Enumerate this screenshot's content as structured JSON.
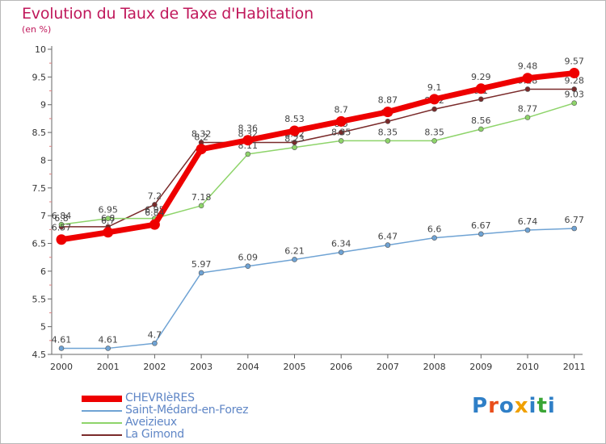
{
  "title": "Evolution du Taux de Taxe d'Habitation",
  "subtitle": "(en %)",
  "brand": {
    "text": "Proxiti",
    "letter_colors": [
      "#2f7fc7",
      "#e94e1b",
      "#2f7fc7",
      "#f0a000",
      "#2f7fc7",
      "#3aa535",
      "#2f7fc7"
    ]
  },
  "chart_data": {
    "type": "line",
    "x": [
      "2000",
      "2001",
      "2002",
      "2003",
      "2004",
      "2005",
      "2006",
      "2007",
      "2008",
      "2009",
      "2010",
      "2011"
    ],
    "ylim": [
      4.5,
      10
    ],
    "yticks": [
      "4.5",
      "5",
      "5.5",
      "6",
      "6.5",
      "7",
      "7.5",
      "8",
      "8.5",
      "9",
      "9.5",
      "10"
    ],
    "grid": false,
    "legend_position": "bottom-left",
    "series": [
      {
        "name": "La Gimond",
        "color": "#7a2a2a",
        "values": [
          6.8,
          6.8,
          7.2,
          8.32,
          8.32,
          8.32,
          8.5,
          8.7,
          8.92,
          9.1,
          9.28,
          9.28
        ],
        "labels": [
          "6.8",
          "6.8",
          "7.2",
          "8.32",
          "8.32",
          "8.32",
          "8.5",
          "8.7",
          "8.92",
          "9.1",
          "9.28",
          "9.28"
        ]
      },
      {
        "name": "Aveizieux",
        "color": "#8ed46a",
        "values": [
          6.84,
          6.95,
          6.95,
          7.18,
          8.11,
          8.23,
          8.35,
          8.35,
          8.35,
          8.56,
          8.77,
          9.03
        ],
        "labels": [
          "6.84",
          "6.95",
          "6.95",
          "7.18",
          "8.11",
          "8.23",
          "8.35",
          "8.35",
          "8.35",
          "8.56",
          "8.77",
          "9.03"
        ]
      },
      {
        "name": "Saint-Médard-en-Forez",
        "color": "#6fa3d4",
        "values": [
          4.61,
          4.61,
          4.7,
          5.97,
          6.09,
          6.21,
          6.34,
          6.47,
          6.6,
          6.67,
          6.74,
          6.77
        ],
        "labels": [
          "4.61",
          "4.61",
          "4.7",
          "5.97",
          "6.09",
          "6.21",
          "6.34",
          "6.47",
          "6.6",
          "6.67",
          "6.74",
          "6.77"
        ]
      },
      {
        "name": "CHEVRIèRES",
        "color": "#ee0000",
        "values": [
          6.57,
          6.7,
          6.84,
          8.2,
          8.36,
          8.53,
          8.7,
          8.87,
          9.1,
          9.29,
          9.48,
          9.57
        ],
        "labels": [
          "6.57",
          "6.7",
          "6.84",
          "8.2",
          "8.36",
          "8.53",
          "8.7",
          "8.87",
          "9.1",
          "9.29",
          "9.48",
          "9.57"
        ]
      }
    ]
  }
}
